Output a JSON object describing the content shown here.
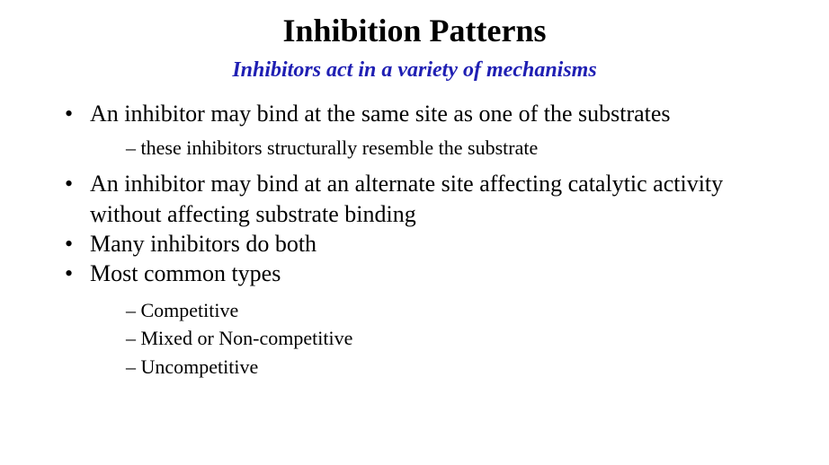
{
  "title": "Inhibition Patterns",
  "subtitle": "Inhibitors act in a variety of mechanisms",
  "subtitle_color": "#1f1fb3",
  "bullets": {
    "b1": "An inhibitor may bind at the same site as one of the substrates",
    "b1_sub": "these inhibitors structurally resemble the substrate",
    "b2": "An inhibitor may bind at an alternate site affecting catalytic activity without affecting substrate binding",
    "b3": "Many inhibitors do both",
    "b4": "Most common types",
    "b4_subs": {
      "s1": "Competitive",
      "s2": "Mixed or Non-competitive",
      "s3": "Uncompetitive"
    }
  }
}
